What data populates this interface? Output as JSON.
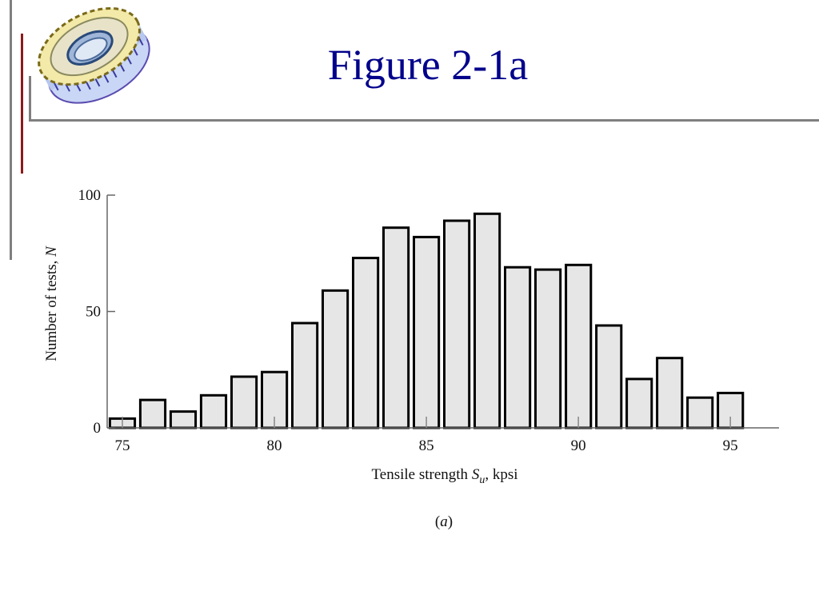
{
  "slide": {
    "title": "Figure 2-1a",
    "caption": "(a)",
    "accent_color": "#00008b",
    "logo_icon": "gear-icon"
  },
  "chart_data": {
    "type": "bar",
    "x": [
      75,
      76,
      77,
      78,
      79,
      80,
      81,
      82,
      83,
      84,
      85,
      86,
      87,
      88,
      89,
      90,
      91,
      92,
      93,
      94,
      95
    ],
    "values": [
      4,
      12,
      7,
      14,
      22,
      24,
      45,
      59,
      73,
      86,
      82,
      89,
      92,
      69,
      68,
      70,
      44,
      21,
      30,
      13,
      15
    ],
    "xlabel_parts": [
      "Tensile strength ",
      "S",
      "u",
      ", kpsi"
    ],
    "ylabel_parts": [
      "Number of tests, ",
      "N"
    ],
    "xticks": [
      75,
      80,
      85,
      90,
      95
    ],
    "yticks": [
      0,
      50,
      100
    ],
    "xlim": [
      74.5,
      96.6
    ],
    "ylim": [
      0,
      100
    ],
    "bar_fill": "#e6e6e6",
    "bar_stroke": "#000000",
    "grid": false
  }
}
